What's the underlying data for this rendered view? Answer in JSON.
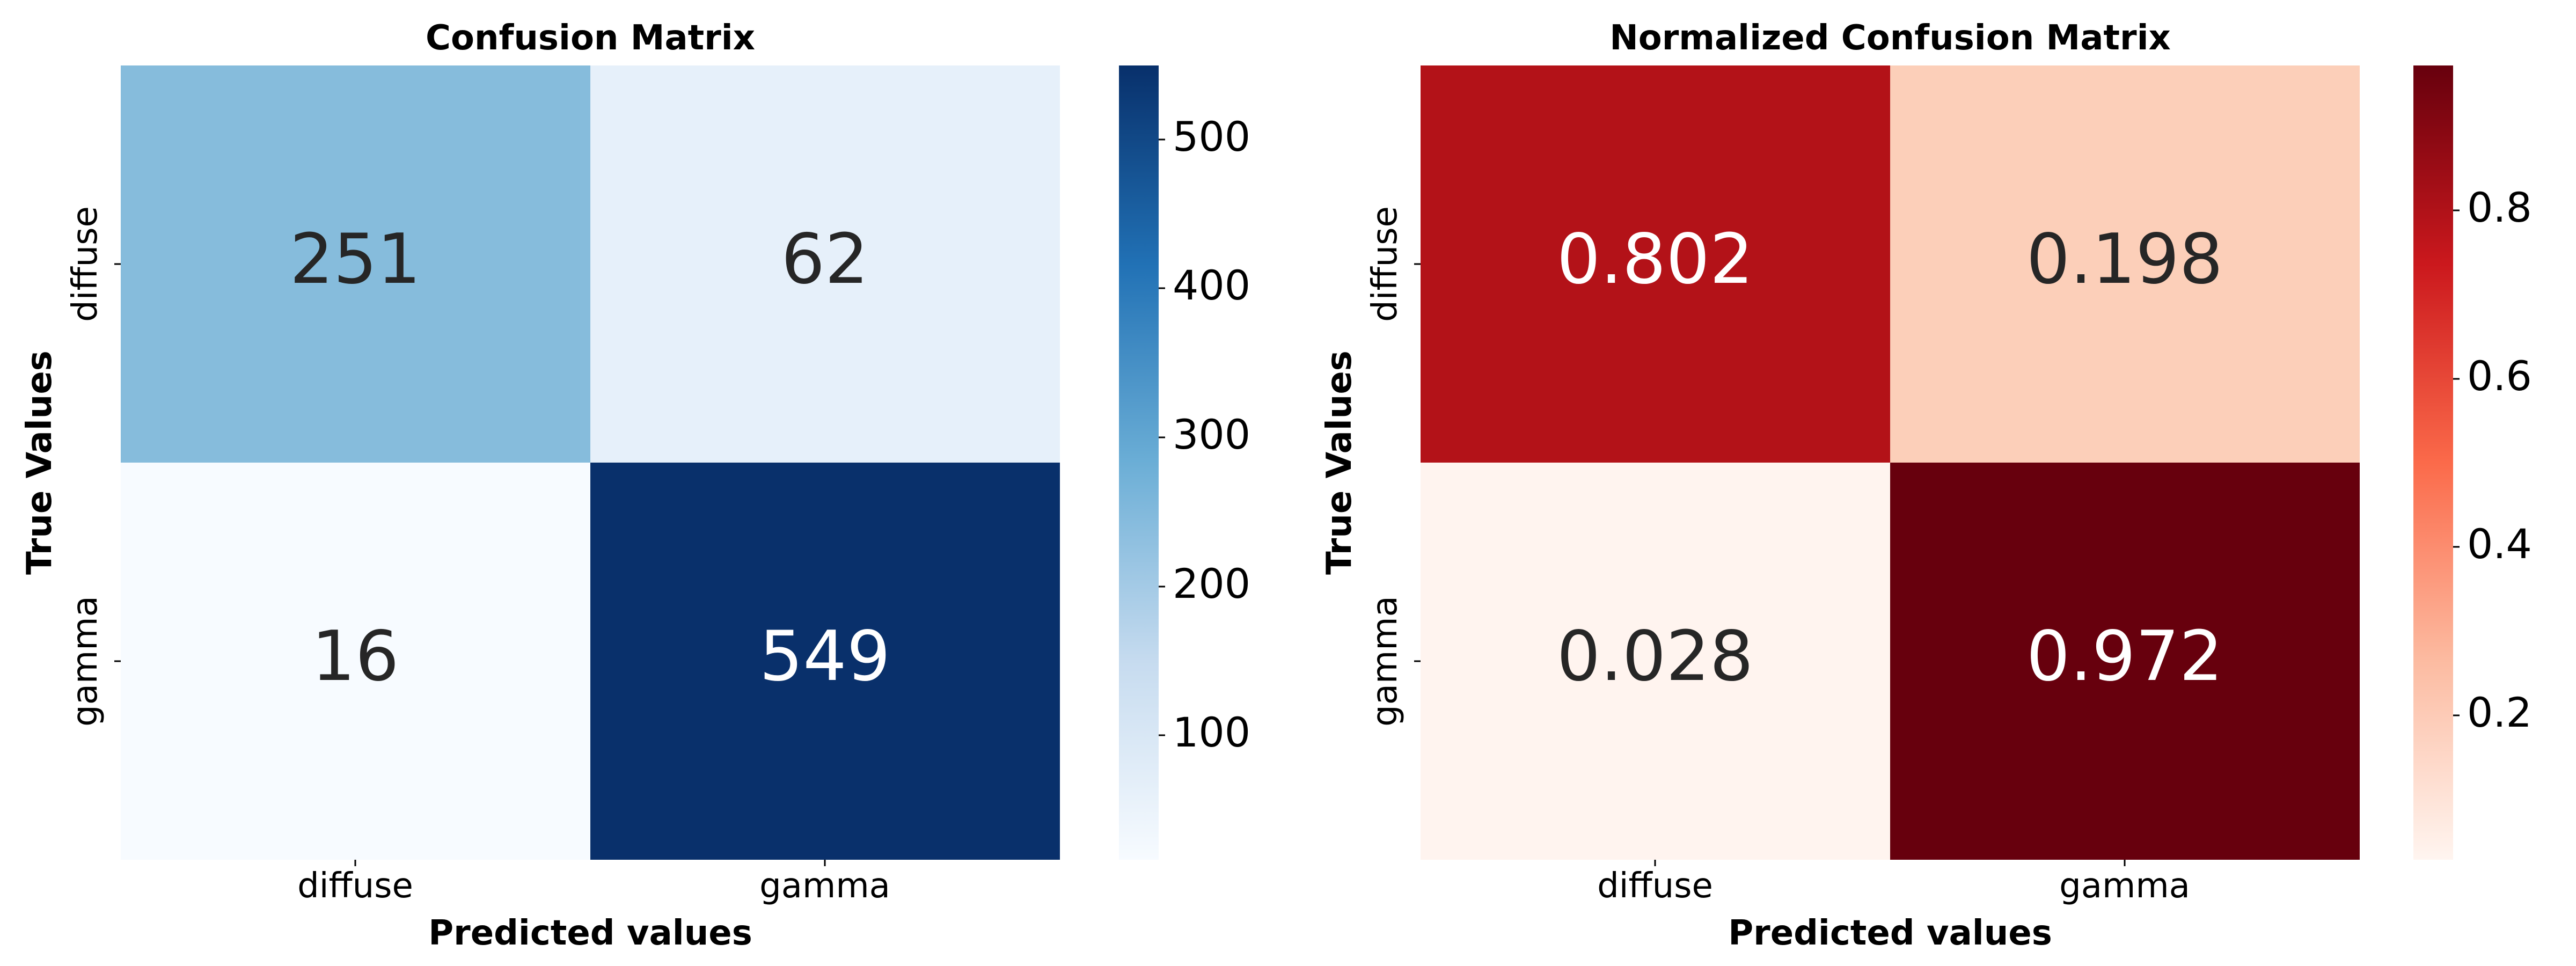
{
  "chart_data": [
    {
      "type": "heatmap",
      "title": "Confusion Matrix",
      "xlabel": "Predicted values",
      "ylabel": "True Values",
      "x_categories": [
        "diffuse",
        "gamma"
      ],
      "y_categories": [
        "diffuse",
        "gamma"
      ],
      "values": [
        [
          "251",
          "62"
        ],
        [
          "16",
          "549"
        ]
      ],
      "colormap": "Blues",
      "colorbar": {
        "range": [
          16,
          549
        ],
        "ticks": [
          "100",
          "200",
          "300",
          "400",
          "500"
        ]
      }
    },
    {
      "type": "heatmap",
      "title": "Normalized Confusion Matrix",
      "xlabel": "Predicted values",
      "ylabel": "True Values",
      "x_categories": [
        "diffuse",
        "gamma"
      ],
      "y_categories": [
        "diffuse",
        "gamma"
      ],
      "values": [
        [
          "0.802",
          "0.198"
        ],
        [
          "0.028",
          "0.972"
        ]
      ],
      "colormap": "Reds",
      "colorbar": {
        "range": [
          0.028,
          0.972
        ],
        "ticks": [
          "0.2",
          "0.4",
          "0.6",
          "0.8"
        ]
      }
    }
  ]
}
